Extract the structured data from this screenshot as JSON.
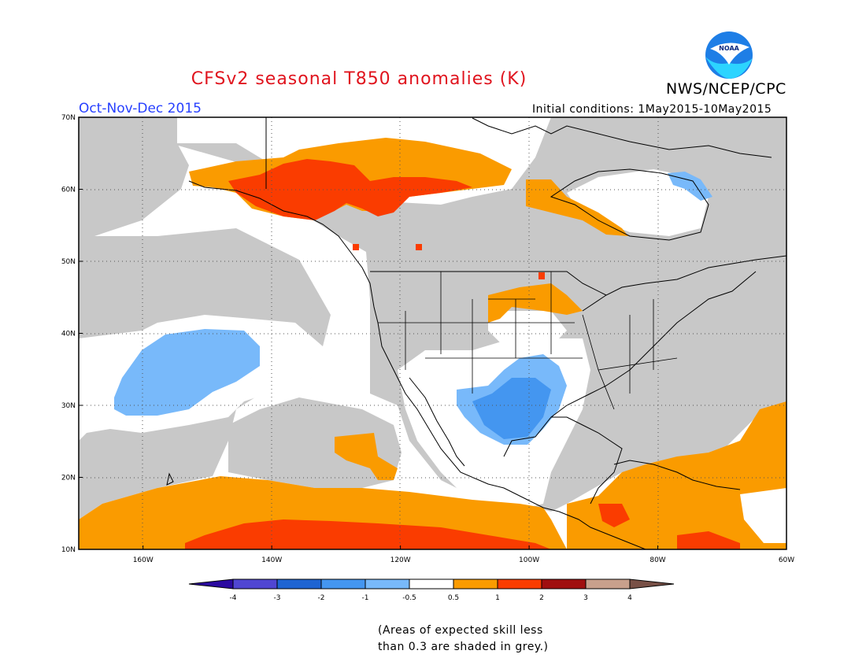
{
  "header": {
    "title": "CFSv2 seasonal T850 anomalies (K)",
    "org": "NWS/NCEP/CPC",
    "logo_text": "NOAA",
    "season": "Oct-Nov-Dec 2015",
    "initial_conditions": "Initial conditions: 1May2015-10May2015"
  },
  "map": {
    "lon_range": [
      -170,
      -60
    ],
    "lat_range": [
      10,
      70
    ],
    "lon_ticks": [
      -160,
      -140,
      -120,
      -100,
      -80,
      -60
    ],
    "lat_ticks": [
      10,
      20,
      30,
      40,
      50,
      60,
      70
    ],
    "lon_labels": [
      "160W",
      "140W",
      "120W",
      "100W",
      "80W",
      "60W"
    ],
    "lat_labels": [
      "10N",
      "20N",
      "30N",
      "40N",
      "50N",
      "60N",
      "70N"
    ],
    "colors": {
      "skill_grey": "#c8c8c8",
      "neutral": "#ffffff",
      "neg_0_5_1": "#78b9fa",
      "neg_1_2": "#4496f0",
      "pos_0_5_1": "#fa9b00",
      "pos_1_2": "#fa3c00",
      "pos_2_3": "#a00f0f"
    }
  },
  "colorbar": {
    "labels": [
      "-4",
      "-3",
      "-2",
      "-1",
      "-0.5",
      "0.5",
      "1",
      "2",
      "3",
      "4"
    ],
    "colors": [
      "#2b0aa0",
      "#5046d2",
      "#1e64d2",
      "#4496f0",
      "#78b9fa",
      "#ffffff",
      "#fa9b00",
      "#fa3c00",
      "#a00f0f",
      "#c8a08c",
      "#785046"
    ]
  },
  "footer": {
    "skill_note_line1": "(Areas of expected skill less",
    "skill_note_line2": "than 0.3 are shaded in grey.)"
  }
}
